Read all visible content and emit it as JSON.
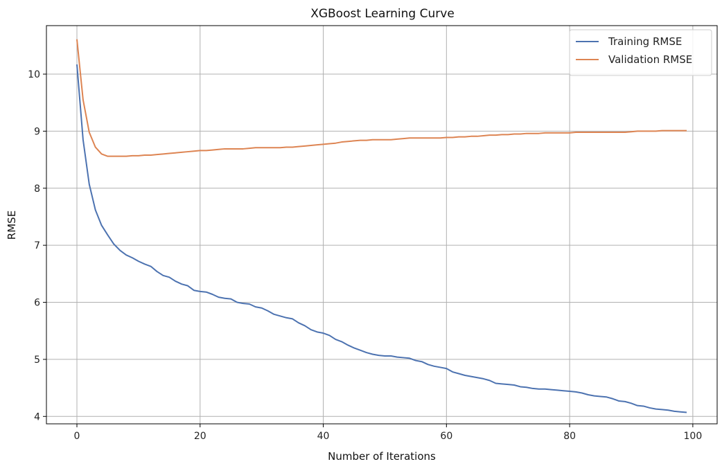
{
  "chart_data": {
    "type": "line",
    "title": "XGBoost Learning Curve",
    "xlabel": "Number of Iterations",
    "ylabel": "RMSE",
    "xlim": [
      -4.95,
      103.95
    ],
    "ylim": [
      3.87,
      10.85
    ],
    "xticks": [
      0,
      20,
      40,
      60,
      80,
      100
    ],
    "yticks": [
      4,
      5,
      6,
      7,
      8,
      9,
      10
    ],
    "grid": true,
    "legend": "top-right",
    "series": [
      {
        "name": "Training RMSE",
        "color": "#4c72b0",
        "values": [
          10.17,
          8.85,
          8.07,
          7.62,
          7.35,
          7.18,
          7.02,
          6.91,
          6.83,
          6.78,
          6.72,
          6.67,
          6.63,
          6.54,
          6.47,
          6.44,
          6.37,
          6.32,
          6.29,
          6.21,
          6.19,
          6.18,
          6.14,
          6.09,
          6.07,
          6.06,
          6.0,
          5.98,
          5.97,
          5.92,
          5.9,
          5.85,
          5.79,
          5.76,
          5.73,
          5.71,
          5.64,
          5.59,
          5.52,
          5.48,
          5.46,
          5.42,
          5.35,
          5.31,
          5.25,
          5.2,
          5.16,
          5.12,
          5.09,
          5.07,
          5.06,
          5.06,
          5.04,
          5.03,
          5.02,
          4.98,
          4.96,
          4.91,
          4.88,
          4.86,
          4.84,
          4.78,
          4.75,
          4.72,
          4.7,
          4.68,
          4.66,
          4.63,
          4.58,
          4.57,
          4.56,
          4.55,
          4.52,
          4.51,
          4.49,
          4.48,
          4.48,
          4.47,
          4.46,
          4.45,
          4.44,
          4.43,
          4.41,
          4.38,
          4.36,
          4.35,
          4.34,
          4.31,
          4.27,
          4.26,
          4.23,
          4.19,
          4.18,
          4.15,
          4.13,
          4.12,
          4.11,
          4.09,
          4.08,
          4.07
        ]
      },
      {
        "name": "Validation RMSE",
        "color": "#dd8452",
        "values": [
          10.61,
          9.55,
          8.98,
          8.72,
          8.6,
          8.56,
          8.56,
          8.56,
          8.56,
          8.57,
          8.57,
          8.58,
          8.58,
          8.59,
          8.6,
          8.61,
          8.62,
          8.63,
          8.64,
          8.65,
          8.66,
          8.66,
          8.67,
          8.68,
          8.69,
          8.69,
          8.69,
          8.69,
          8.7,
          8.71,
          8.71,
          8.71,
          8.71,
          8.71,
          8.72,
          8.72,
          8.73,
          8.74,
          8.75,
          8.76,
          8.77,
          8.78,
          8.79,
          8.81,
          8.82,
          8.83,
          8.84,
          8.84,
          8.85,
          8.85,
          8.85,
          8.85,
          8.86,
          8.87,
          8.88,
          8.88,
          8.88,
          8.88,
          8.88,
          8.88,
          8.89,
          8.89,
          8.9,
          8.9,
          8.91,
          8.91,
          8.92,
          8.93,
          8.93,
          8.94,
          8.94,
          8.95,
          8.95,
          8.96,
          8.96,
          8.96,
          8.97,
          8.97,
          8.97,
          8.97,
          8.97,
          8.98,
          8.98,
          8.98,
          8.98,
          8.98,
          8.98,
          8.98,
          8.98,
          8.98,
          8.99,
          9.0,
          9.0,
          9.0,
          9.0,
          9.01,
          9.01,
          9.01,
          9.01,
          9.01
        ]
      }
    ]
  }
}
